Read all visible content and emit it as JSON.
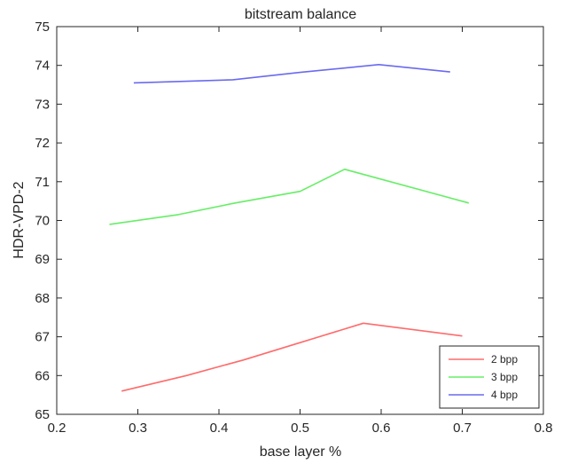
{
  "chart_data": {
    "type": "line",
    "title": "bitstream balance",
    "xlabel": "base layer %",
    "ylabel": "HDR-VPD-2",
    "xlim": [
      0.2,
      0.8
    ],
    "ylim": [
      65,
      75
    ],
    "xticks": [
      "0.2",
      "0.3",
      "0.4",
      "0.5",
      "0.6",
      "0.7",
      "0.8"
    ],
    "yticks": [
      "65",
      "66",
      "67",
      "68",
      "69",
      "70",
      "71",
      "72",
      "73",
      "74",
      "75"
    ],
    "grid": false,
    "legend_position": "bottom-right",
    "series": [
      {
        "name": "2 bpp",
        "color": "#ff6b6b",
        "x": [
          0.28,
          0.36,
          0.43,
          0.5,
          0.578,
          0.7
        ],
        "y": [
          65.6,
          66.0,
          66.4,
          66.85,
          67.35,
          67.02
        ]
      },
      {
        "name": "3 bpp",
        "color": "#66ee66",
        "x": [
          0.265,
          0.35,
          0.42,
          0.5,
          0.555,
          0.708
        ],
        "y": [
          69.9,
          70.15,
          70.45,
          70.75,
          71.32,
          70.45
        ]
      },
      {
        "name": "4 bpp",
        "color": "#6a6af0",
        "x": [
          0.295,
          0.417,
          0.5,
          0.597,
          0.685
        ],
        "y": [
          73.55,
          73.63,
          73.82,
          74.02,
          73.83
        ]
      }
    ]
  }
}
